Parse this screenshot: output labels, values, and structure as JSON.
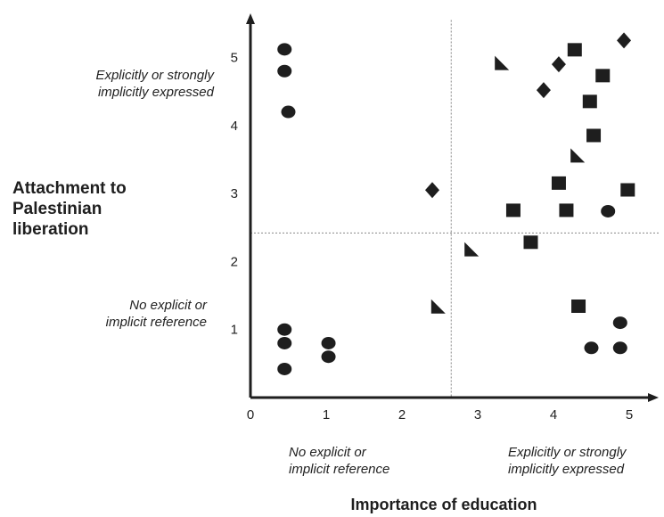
{
  "chart_data": {
    "type": "scatter",
    "title": "",
    "xlabel": "Importance of education",
    "ylabel_lines": [
      "Attachment to",
      "Palestinian",
      "liberation"
    ],
    "xlim": [
      0,
      5.4
    ],
    "ylim": [
      -0.1,
      5.55
    ],
    "xticks": [
      0,
      1,
      2,
      3,
      4,
      5
    ],
    "yticks": [
      1,
      2,
      3,
      4,
      5
    ],
    "x_divider": 2.65,
    "y_divider": 2.42,
    "grid": false,
    "annotations": {
      "y_high_lines": [
        "Explicitly or strongly",
        "implicitly expressed"
      ],
      "y_low_lines": [
        "No explicit or",
        "implicit reference"
      ],
      "x_low_lines": [
        "No explicit or",
        "implicit reference"
      ],
      "x_high_lines": [
        "Explicitly or strongly",
        "implicitly expressed"
      ]
    },
    "series": [
      {
        "marker": "circle",
        "points": [
          [
            0.45,
            5.12
          ],
          [
            0.45,
            4.8
          ],
          [
            0.5,
            4.2
          ],
          [
            0.45,
            1.0
          ],
          [
            0.45,
            0.8
          ],
          [
            0.45,
            0.42
          ],
          [
            1.03,
            0.8
          ],
          [
            1.03,
            0.6
          ],
          [
            4.72,
            2.74
          ],
          [
            4.88,
            1.1
          ],
          [
            4.5,
            0.73
          ],
          [
            4.88,
            0.73
          ]
        ]
      },
      {
        "marker": "square",
        "points": [
          [
            4.28,
            5.12
          ],
          [
            4.65,
            4.74
          ],
          [
            4.48,
            4.36
          ],
          [
            4.53,
            3.86
          ],
          [
            4.07,
            3.16
          ],
          [
            4.98,
            3.06
          ],
          [
            3.47,
            2.76
          ],
          [
            4.17,
            2.76
          ],
          [
            3.7,
            2.29
          ],
          [
            4.33,
            1.35
          ]
        ]
      },
      {
        "marker": "diamond",
        "points": [
          [
            4.93,
            5.25
          ],
          [
            4.07,
            4.9
          ],
          [
            3.87,
            4.52
          ],
          [
            2.4,
            3.05
          ]
        ]
      },
      {
        "marker": "triangle",
        "points": [
          [
            3.32,
            4.92
          ],
          [
            4.32,
            3.56
          ],
          [
            2.92,
            2.18
          ],
          [
            2.48,
            1.34
          ]
        ]
      }
    ]
  }
}
